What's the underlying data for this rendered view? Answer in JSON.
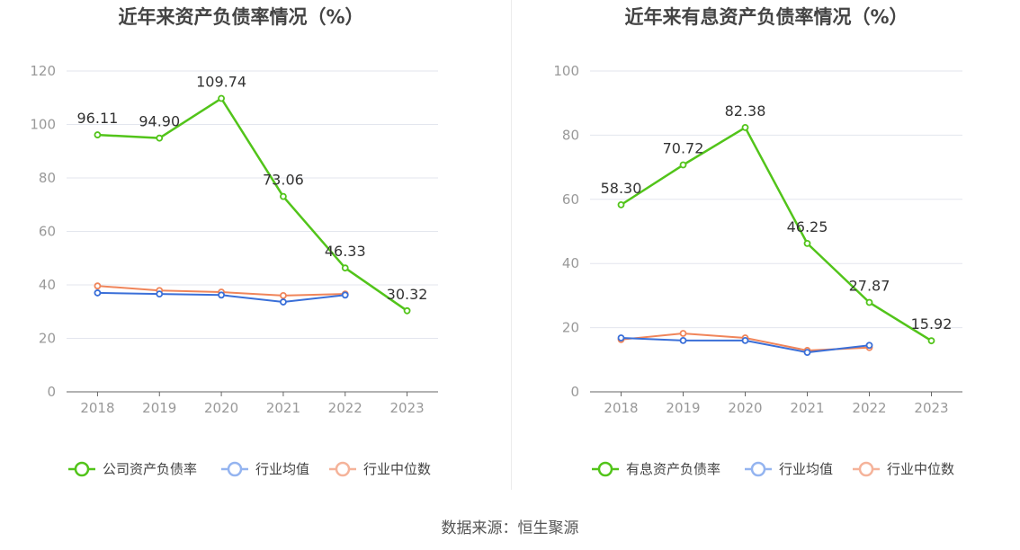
{
  "colors": {
    "company": "#52c41a",
    "industry_avg": "#3a6fd8",
    "industry_median": "#f0855a",
    "legend_avg": "#94b4f0",
    "legend_median": "#f5b39a",
    "grid": "#e3e6ee",
    "axis": "#666666",
    "tick_text": "#999999",
    "title": "#444444",
    "label": "#333333"
  },
  "chart_data": [
    {
      "type": "line",
      "title": "近年来资产负债率情况（%）",
      "categories": [
        "2018",
        "2019",
        "2020",
        "2021",
        "2022",
        "2023"
      ],
      "ylim": [
        0,
        120
      ],
      "yticks": [
        0,
        20,
        40,
        60,
        80,
        100,
        120
      ],
      "series": [
        {
          "name": "公司资产负债率",
          "key": "company",
          "values": [
            96.11,
            94.9,
            109.74,
            73.06,
            46.33,
            30.32
          ],
          "labels": [
            "96.11",
            "94.90",
            "109.74",
            "73.06",
            "46.33",
            "30.32"
          ]
        },
        {
          "name": "行业均值",
          "key": "industry_avg",
          "values": [
            37.0,
            36.6,
            36.2,
            33.6,
            36.2,
            null
          ]
        },
        {
          "name": "行业中位数",
          "key": "industry_median",
          "values": [
            39.6,
            37.9,
            37.3,
            36.0,
            36.6,
            null
          ]
        }
      ]
    },
    {
      "type": "line",
      "title": "近年来有息资产负债率情况（%）",
      "categories": [
        "2018",
        "2019",
        "2020",
        "2021",
        "2022",
        "2023"
      ],
      "ylim": [
        0,
        100
      ],
      "yticks": [
        0,
        20,
        40,
        60,
        80,
        100
      ],
      "series": [
        {
          "name": "有息资产负债率",
          "key": "company",
          "values": [
            58.3,
            70.72,
            82.38,
            46.25,
            27.87,
            15.92
          ],
          "labels": [
            "58.30",
            "70.72",
            "82.38",
            "46.25",
            "27.87",
            "15.92"
          ]
        },
        {
          "name": "行业均值",
          "key": "industry_avg",
          "values": [
            16.8,
            16.0,
            16.0,
            12.3,
            14.5,
            null
          ]
        },
        {
          "name": "行业中位数",
          "key": "industry_median",
          "values": [
            16.3,
            18.2,
            16.8,
            12.9,
            13.8,
            null
          ]
        }
      ]
    }
  ],
  "footer": {
    "source": "数据来源：恒生聚源"
  }
}
